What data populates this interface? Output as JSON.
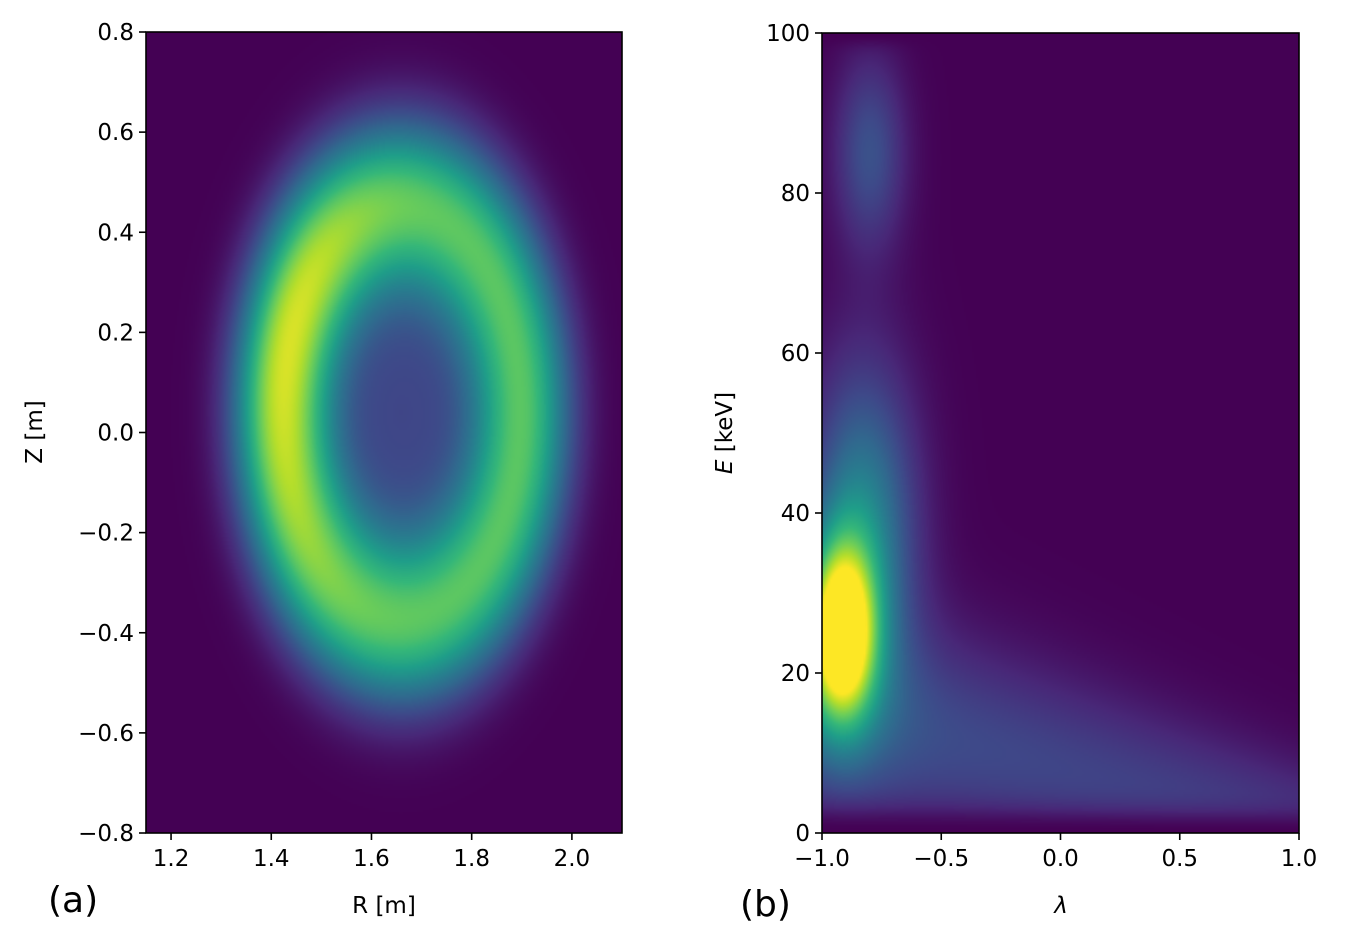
{
  "chart_data": [
    {
      "type": "heatmap",
      "panel_label": "(a)",
      "xlabel": "R [m]",
      "ylabel": "Z [m]",
      "xlim": [
        1.15,
        2.1
      ],
      "ylim": [
        -0.8,
        0.8
      ],
      "xticks": [
        1.2,
        1.4,
        1.6,
        1.8,
        2.0
      ],
      "xtick_labels": [
        "1.2",
        "1.4",
        "1.6",
        "1.8",
        "2.0"
      ],
      "yticks": [
        -0.8,
        -0.6,
        -0.4,
        -0.2,
        0.0,
        0.2,
        0.4,
        0.6,
        0.8
      ],
      "ytick_labels": [
        "−0.8",
        "−0.6",
        "−0.4",
        "−0.2",
        "0.0",
        "0.2",
        "0.4",
        "0.6",
        "0.8"
      ],
      "colormap": "viridis",
      "grid": false,
      "field": {
        "shape": "elliptical ring",
        "center": [
          1.66,
          0.04
        ],
        "semi_axis_R": 0.45,
        "semi_axis_Z": 0.78,
        "peak_at_normalized_radius": 0.55,
        "peak_location_RZ": [
          1.45,
          0.15
        ],
        "minimum_at_center": 0.2
      }
    },
    {
      "type": "heatmap",
      "panel_label": "(b)",
      "xlabel": "λ",
      "ylabel": "E [keV]",
      "ylabel_italic_part": "E",
      "ylabel_rest": " [keV]",
      "xlim": [
        -1.0,
        1.0
      ],
      "ylim": [
        0,
        100
      ],
      "xticks": [
        -1.0,
        -0.5,
        0.0,
        0.5,
        1.0
      ],
      "xtick_labels": [
        "−1.0",
        "−0.5",
        "0.0",
        "0.5",
        "1.0"
      ],
      "yticks": [
        0,
        20,
        40,
        60,
        80,
        100
      ],
      "ytick_labels": [
        "0",
        "20",
        "40",
        "60",
        "80",
        "100"
      ],
      "colormap": "viridis",
      "grid": false,
      "field": {
        "peak_location_lambda_E": [
          -0.92,
          25
        ],
        "secondary_band_E": [
          80,
          95
        ],
        "low_energy_tail_toward": [
          0.8,
          8
        ]
      }
    }
  ],
  "colors": {
    "viridis": [
      "#440154",
      "#482878",
      "#3e4989",
      "#31688e",
      "#26828e",
      "#1f9e89",
      "#35b779",
      "#6ece58",
      "#b5de2b",
      "#fde725"
    ],
    "axes": "#000000",
    "background": "#ffffff"
  }
}
